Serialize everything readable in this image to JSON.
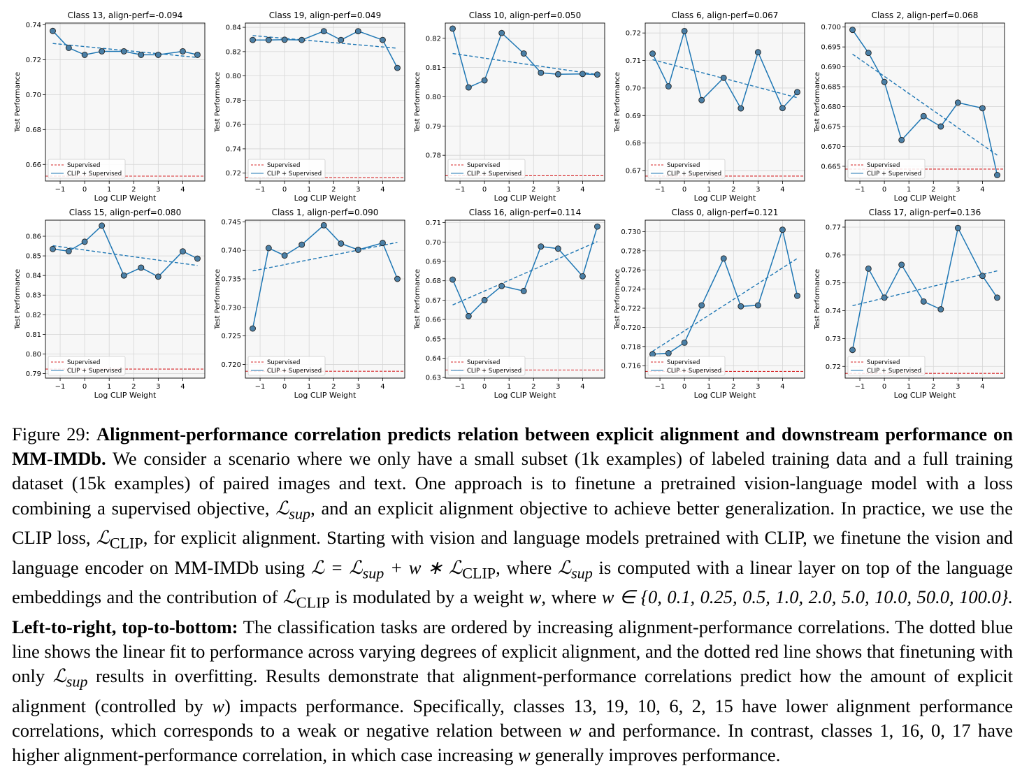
{
  "chart_data": [
    {
      "type": "line",
      "title": "Class 13, align-perf=-0.094",
      "xlabel": "Log CLIP Weight",
      "ylabel": "Test Performance",
      "xlim": [
        -1.6,
        4.9
      ],
      "ylim": [
        0.6505,
        0.741
      ],
      "yticks": [
        0.66,
        0.68,
        0.7,
        0.72,
        0.74
      ],
      "ytick_labels": [
        "0.66",
        "0.68",
        "0.70",
        "0.72",
        "0.74"
      ],
      "xticks": [
        -1,
        0,
        1,
        2,
        3,
        4
      ],
      "xtick_labels": [
        "−1",
        "0",
        "1",
        "2",
        "3",
        "4"
      ],
      "x": [
        -1.3,
        -0.65,
        0,
        0.7,
        1.6,
        2.3,
        3,
        4,
        4.6
      ],
      "y": [
        0.7365,
        0.7268,
        0.7228,
        0.7248,
        0.7248,
        0.7228,
        0.7228,
        0.7248,
        0.7228
      ],
      "fit": [
        0.7293,
        0.7213
      ],
      "supervised": 0.6533,
      "series": [
        {
          "name": "Supervised"
        },
        {
          "name": "CLIP + Supervised"
        }
      ],
      "grid": true,
      "legend": "lower-left"
    },
    {
      "type": "line",
      "title": "Class 19, align-perf=0.049",
      "xlabel": "Log CLIP Weight",
      "ylabel": "Test Performance",
      "xlim": [
        -1.6,
        4.9
      ],
      "ylim": [
        0.7135,
        0.8435
      ],
      "yticks": [
        0.72,
        0.74,
        0.76,
        0.78,
        0.8,
        0.82,
        0.84
      ],
      "ytick_labels": [
        "0.72",
        "0.74",
        "0.76",
        "0.78",
        "0.80",
        "0.82",
        "0.84"
      ],
      "xticks": [
        -1,
        0,
        1,
        2,
        3,
        4
      ],
      "xtick_labels": [
        "−1",
        "0",
        "1",
        "2",
        "3",
        "4"
      ],
      "x": [
        -1.3,
        -0.65,
        0,
        0.7,
        1.6,
        2.3,
        3,
        4,
        4.6
      ],
      "y": [
        0.8296,
        0.8296,
        0.8298,
        0.8296,
        0.8368,
        0.8296,
        0.8368,
        0.8296,
        0.8066
      ],
      "fit": [
        0.8332,
        0.8228
      ],
      "supervised": 0.7162,
      "series": [
        {
          "name": "Supervised"
        },
        {
          "name": "CLIP + Supervised"
        }
      ],
      "grid": true,
      "legend": "lower-left"
    },
    {
      "type": "line",
      "title": "Class 10, align-perf=0.050",
      "xlabel": "Log CLIP Weight",
      "ylabel": "Test Performance",
      "xlim": [
        -1.6,
        4.9
      ],
      "ylim": [
        0.7712,
        0.8252
      ],
      "yticks": [
        0.78,
        0.79,
        0.8,
        0.81,
        0.82
      ],
      "ytick_labels": [
        "0.78",
        "0.79",
        "0.80",
        "0.81",
        "0.82"
      ],
      "xticks": [
        -1,
        0,
        1,
        2,
        3,
        4
      ],
      "xtick_labels": [
        "−1",
        "0",
        "1",
        "2",
        "3",
        "4"
      ],
      "x": [
        -1.3,
        -0.65,
        0,
        0.7,
        1.6,
        2.3,
        3,
        4,
        4.6
      ],
      "y": [
        0.8233,
        0.8032,
        0.8056,
        0.8218,
        0.8148,
        0.8082,
        0.8077,
        0.8078,
        0.8076
      ],
      "fit": [
        0.8148,
        0.8076
      ],
      "supervised": 0.773,
      "series": [
        {
          "name": "Supervised"
        },
        {
          "name": "CLIP + Supervised"
        }
      ],
      "grid": true,
      "legend": "lower-left"
    },
    {
      "type": "line",
      "title": "Class 6, align-perf=0.067",
      "xlabel": "Log CLIP Weight",
      "ylabel": "Test Performance",
      "xlim": [
        -1.6,
        4.9
      ],
      "ylim": [
        0.6662,
        0.7236
      ],
      "yticks": [
        0.67,
        0.68,
        0.69,
        0.7,
        0.71,
        0.72
      ],
      "ytick_labels": [
        "0.67",
        "0.68",
        "0.69",
        "0.70",
        "0.71",
        "0.72"
      ],
      "xticks": [
        -1,
        0,
        1,
        2,
        3,
        4
      ],
      "xtick_labels": [
        "−1",
        "0",
        "1",
        "2",
        "3",
        "4"
      ],
      "x": [
        -1.3,
        -0.65,
        0,
        0.7,
        1.6,
        2.3,
        3,
        4,
        4.6
      ],
      "y": [
        0.7125,
        0.7006,
        0.7207,
        0.6956,
        0.7037,
        0.6926,
        0.713,
        0.6927,
        0.6985
      ],
      "fit": [
        0.7103,
        0.6965
      ],
      "supervised": 0.668,
      "series": [
        {
          "name": "Supervised"
        },
        {
          "name": "CLIP + Supervised"
        }
      ],
      "grid": true,
      "legend": "lower-left"
    },
    {
      "type": "line",
      "title": "Class 2, align-perf=0.068",
      "xlabel": "Log CLIP Weight",
      "ylabel": "Test Performance",
      "xlim": [
        -1.6,
        4.9
      ],
      "ylim": [
        0.6613,
        0.701
      ],
      "yticks": [
        0.665,
        0.67,
        0.675,
        0.68,
        0.685,
        0.69,
        0.695,
        0.7
      ],
      "ytick_labels": [
        "0.665",
        "0.670",
        "0.675",
        "0.680",
        "0.685",
        "0.690",
        "0.695",
        "0.700"
      ],
      "xticks": [
        -1,
        0,
        1,
        2,
        3,
        4
      ],
      "xtick_labels": [
        "−1",
        "0",
        "1",
        "2",
        "3",
        "4"
      ],
      "x": [
        -1.3,
        -0.65,
        0,
        0.7,
        1.6,
        2.3,
        3,
        4,
        4.6
      ],
      "y": [
        0.6993,
        0.6935,
        0.6862,
        0.6716,
        0.6776,
        0.675,
        0.681,
        0.6796,
        0.6628
      ],
      "fit": [
        0.6932,
        0.6678
      ],
      "supervised": 0.6643,
      "series": [
        {
          "name": "Supervised"
        },
        {
          "name": "CLIP + Supervised"
        }
      ],
      "grid": true,
      "legend": "lower-left"
    },
    {
      "type": "line",
      "title": "Class 15, align-perf=0.080",
      "xlabel": "Log CLIP Weight",
      "ylabel": "Test Performance",
      "xlim": [
        -1.6,
        4.9
      ],
      "ylim": [
        0.7877,
        0.8682
      ],
      "yticks": [
        0.79,
        0.8,
        0.81,
        0.82,
        0.83,
        0.84,
        0.85,
        0.86
      ],
      "ytick_labels": [
        "0.79",
        "0.80",
        "0.81",
        "0.82",
        "0.83",
        "0.84",
        "0.85",
        "0.86"
      ],
      "xticks": [
        -1,
        0,
        1,
        2,
        3,
        4
      ],
      "xtick_labels": [
        "−1",
        "0",
        "1",
        "2",
        "3",
        "4"
      ],
      "x": [
        -1.3,
        -0.65,
        0,
        0.7,
        1.6,
        2.3,
        3,
        4,
        4.6
      ],
      "y": [
        0.8535,
        0.8524,
        0.8572,
        0.8654,
        0.84,
        0.844,
        0.8394,
        0.8523,
        0.8486
      ],
      "fit": [
        0.8552,
        0.8451
      ],
      "supervised": 0.7923,
      "series": [
        {
          "name": "Supervised"
        },
        {
          "name": "CLIP + Supervised"
        }
      ],
      "grid": true,
      "legend": "lower-left"
    },
    {
      "type": "line",
      "title": "Class 1, align-perf=0.090",
      "xlabel": "Log CLIP Weight",
      "ylabel": "Test Performance",
      "xlim": [
        -1.6,
        4.9
      ],
      "ylim": [
        0.7176,
        0.7453
      ],
      "yticks": [
        0.72,
        0.725,
        0.73,
        0.735,
        0.74,
        0.745
      ],
      "ytick_labels": [
        "0.720",
        "0.725",
        "0.730",
        "0.735",
        "0.740",
        "0.745"
      ],
      "xticks": [
        -1,
        0,
        1,
        2,
        3,
        4
      ],
      "xtick_labels": [
        "−1",
        "0",
        "1",
        "2",
        "3",
        "4"
      ],
      "x": [
        -1.3,
        -0.65,
        0,
        0.7,
        1.6,
        2.3,
        3,
        4,
        4.6
      ],
      "y": [
        0.7263,
        0.7404,
        0.7391,
        0.741,
        0.7444,
        0.7412,
        0.7401,
        0.7413,
        0.735
      ],
      "fit": [
        0.7364,
        0.7414
      ],
      "supervised": 0.7188,
      "series": [
        {
          "name": "Supervised"
        },
        {
          "name": "CLIP + Supervised"
        }
      ],
      "grid": true,
      "legend": "lower-left"
    },
    {
      "type": "line",
      "title": "Class 16, align-perf=0.114",
      "xlabel": "Log CLIP Weight",
      "ylabel": "Test Performance",
      "xlim": [
        -1.6,
        4.9
      ],
      "ylim": [
        0.6297,
        0.7113
      ],
      "yticks": [
        0.63,
        0.64,
        0.65,
        0.66,
        0.67,
        0.68,
        0.69,
        0.7,
        0.71
      ],
      "ytick_labels": [
        "0.63",
        "0.64",
        "0.65",
        "0.66",
        "0.67",
        "0.68",
        "0.69",
        "0.70",
        "0.71"
      ],
      "xticks": [
        -1,
        0,
        1,
        2,
        3,
        4
      ],
      "xtick_labels": [
        "−1",
        "0",
        "1",
        "2",
        "3",
        "4"
      ],
      "x": [
        -1.3,
        -0.65,
        0,
        0.7,
        1.6,
        2.3,
        3,
        4,
        4.6
      ],
      "y": [
        0.6806,
        0.6617,
        0.67,
        0.6773,
        0.6747,
        0.6977,
        0.6966,
        0.6823,
        0.708
      ],
      "fit": [
        0.6675,
        0.7002
      ],
      "supervised": 0.6339,
      "series": [
        {
          "name": "Supervised"
        },
        {
          "name": "CLIP + Supervised"
        }
      ],
      "grid": true,
      "legend": "lower-left"
    },
    {
      "type": "line",
      "title": "Class 0, align-perf=0.121",
      "xlabel": "Log CLIP Weight",
      "ylabel": "Test Performance",
      "xlim": [
        -1.6,
        4.9
      ],
      "ylim": [
        0.7147,
        0.7312
      ],
      "yticks": [
        0.716,
        0.718,
        0.72,
        0.722,
        0.724,
        0.726,
        0.728,
        0.73
      ],
      "ytick_labels": [
        "0.716",
        "0.718",
        "0.720",
        "0.722",
        "0.724",
        "0.726",
        "0.728",
        "0.730"
      ],
      "xticks": [
        -1,
        0,
        1,
        2,
        3,
        4
      ],
      "xtick_labels": [
        "−1",
        "0",
        "1",
        "2",
        "3",
        "4"
      ],
      "x": [
        -1.3,
        -0.65,
        0,
        0.7,
        1.6,
        2.3,
        3,
        4,
        4.6
      ],
      "y": [
        0.7172,
        0.7173,
        0.7184,
        0.7223,
        0.7272,
        0.7222,
        0.7223,
        0.7302,
        0.7233
      ],
      "fit": [
        0.7175,
        0.7272
      ],
      "supervised": 0.7154,
      "series": [
        {
          "name": "Supervised"
        },
        {
          "name": "CLIP + Supervised"
        }
      ],
      "grid": true,
      "legend": "lower-left"
    },
    {
      "type": "line",
      "title": "Class 17, align-perf=0.136",
      "xlabel": "Log CLIP Weight",
      "ylabel": "Test Performance",
      "xlim": [
        -1.6,
        4.9
      ],
      "ylim": [
        0.7158,
        0.7725
      ],
      "yticks": [
        0.72,
        0.73,
        0.74,
        0.75,
        0.76,
        0.77
      ],
      "ytick_labels": [
        "0.72",
        "0.73",
        "0.74",
        "0.75",
        "0.76",
        "0.77"
      ],
      "xticks": [
        -1,
        0,
        1,
        2,
        3,
        4
      ],
      "xtick_labels": [
        "−1",
        "0",
        "1",
        "2",
        "3",
        "4"
      ],
      "x": [
        -1.3,
        -0.65,
        0,
        0.7,
        1.6,
        2.3,
        3,
        4,
        4.6
      ],
      "y": [
        0.7259,
        0.7551,
        0.7447,
        0.7565,
        0.7433,
        0.7405,
        0.7697,
        0.7525,
        0.7447
      ],
      "fit": [
        0.7418,
        0.7543
      ],
      "supervised": 0.7175,
      "series": [
        {
          "name": "Supervised"
        },
        {
          "name": "CLIP + Supervised"
        }
      ],
      "grid": true,
      "legend": "lower-left"
    }
  ],
  "colors": {
    "series": "#1f77b4",
    "marker_fill": "#4a7fa6",
    "supervised": "#d62728",
    "axes_bg": "#f7f7f7",
    "grid": "#d6d6d6"
  },
  "caption": {
    "label": "Figure 29:",
    "bold_title": "Alignment-performance correlation predicts relation between explicit alignment and downstream performance on MM-IMDb.",
    "s1": "We consider a scenario where we only have a small subset (1k examples) of labeled training data and a full training dataset (15k examples) of paired images and text. One approach is to finetune a pretrained vision-language model with a loss combining a supervised objective,",
    "l_sup": "ℒ",
    "sub_sup": "sup",
    "s2": ", and an explicit alignment objective to achieve better generalization. In practice, we use the CLIP loss,",
    "l_clip": "ℒ",
    "sub_clip": "CLIP",
    "s3": ", for explicit alignment. Starting with vision and language models pretrained with CLIP, we finetune the vision and language encoder on MM-IMDb using",
    "eq": "ℒ = ℒ",
    "eq_sub1": "sup",
    "eq_mid": " + w ∗ ℒ",
    "eq_sub2": "CLIP",
    "s4": ", where",
    "s5": "is computed with a linear layer on top of the language embeddings and the contribution of",
    "s6": "is modulated by a weight",
    "w": "w",
    "s7": ", where",
    "set": "w ∈ {0, 0.1, 0.25, 0.5, 1.0, 2.0, 5.0, 10.0, 50.0, 100.0}.",
    "bold_order": "Left-to-right, top-to-bottom:",
    "s8": "The classification tasks are ordered by increasing alignment-performance correlations. The dotted blue line shows the linear fit to performance across varying degrees of explicit alignment, and the dotted red line shows that finetuning with only",
    "s9": "results in overfitting. Results demonstrate that alignment-performance correlations predict how the amount of explicit alignment (controlled by",
    "s10": ") impacts performance. Specifically, classes 13, 19, 10, 6, 2, 15 have lower alignment performance correlations, which corresponds to a weak or negative relation between",
    "s11": "and performance. In contrast, classes 1, 16, 0, 17 have higher alignment-performance correlation, in which case increasing",
    "s12": "generally improves performance."
  }
}
